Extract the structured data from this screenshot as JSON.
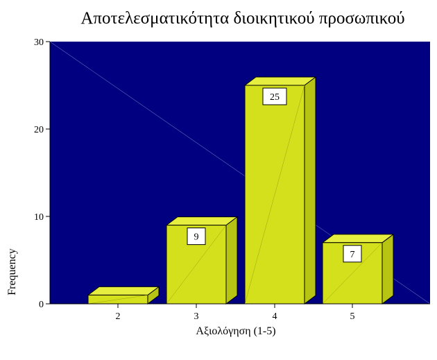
{
  "chart_data": {
    "type": "bar",
    "title": "Αποτελεσματικότητα διοικητικού προσωπικού",
    "xlabel": "Αξιολόγηση (1-5)",
    "ylabel": "Frequency",
    "categories": [
      "2",
      "3",
      "4",
      "5"
    ],
    "values": [
      1,
      9,
      25,
      7
    ],
    "data_labels": [
      "",
      "9",
      "25",
      "7"
    ],
    "ylim": [
      0,
      30
    ],
    "yticks": [
      0,
      10,
      20,
      30
    ],
    "style": "3d",
    "colors": {
      "plot_background": "#000080",
      "bar_front": "#d4e01c",
      "bar_top": "#e6ee40",
      "bar_side": "#b8c414",
      "bar_outline": "#000000"
    }
  }
}
